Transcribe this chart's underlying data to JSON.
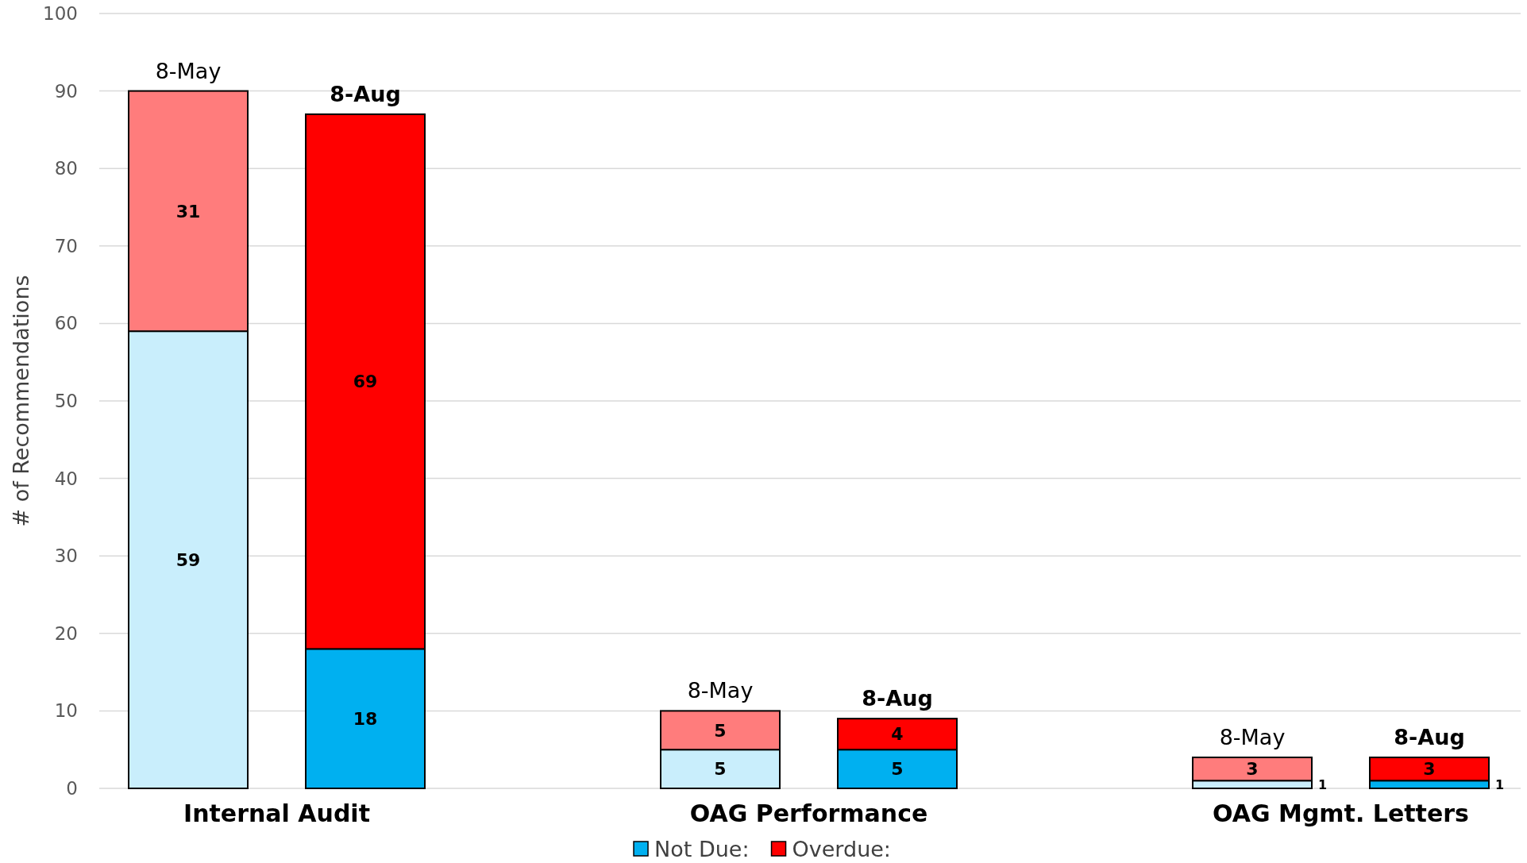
{
  "chart_data": {
    "type": "bar",
    "stacked": true,
    "ylabel": "# of Recommendations",
    "categories": [
      "8-May",
      "8-Aug",
      "8-May",
      "8-Aug",
      "8-May",
      "8-Aug"
    ],
    "series": [
      {
        "name": "Not Due:",
        "color": "#00b0f0",
        "colors": [
          "#c9eefc",
          "#00b0f0",
          "#c9eefc",
          "#00b0f0",
          "#c9eefc",
          "#00b0f0"
        ],
        "values": [
          59,
          18,
          5,
          5,
          1,
          1
        ]
      },
      {
        "name": "Overdue:",
        "color": "#ff0000",
        "colors": [
          "#ff7c7c",
          "#ff0000",
          "#ff7c7c",
          "#ff0000",
          "#ff7c7c",
          "#ff0000"
        ],
        "values": [
          31,
          69,
          5,
          4,
          3,
          3
        ]
      }
    ],
    "annotations": [
      "Internal Audit",
      "OAG Performance",
      "OAG Mgmt. Letters"
    ],
    "ylim": [
      0,
      100
    ],
    "yticks": [
      0,
      10,
      20,
      30,
      40,
      50,
      60,
      70,
      80,
      90,
      100
    ],
    "grid": "y",
    "data_labels": true,
    "legend": "bottom"
  }
}
